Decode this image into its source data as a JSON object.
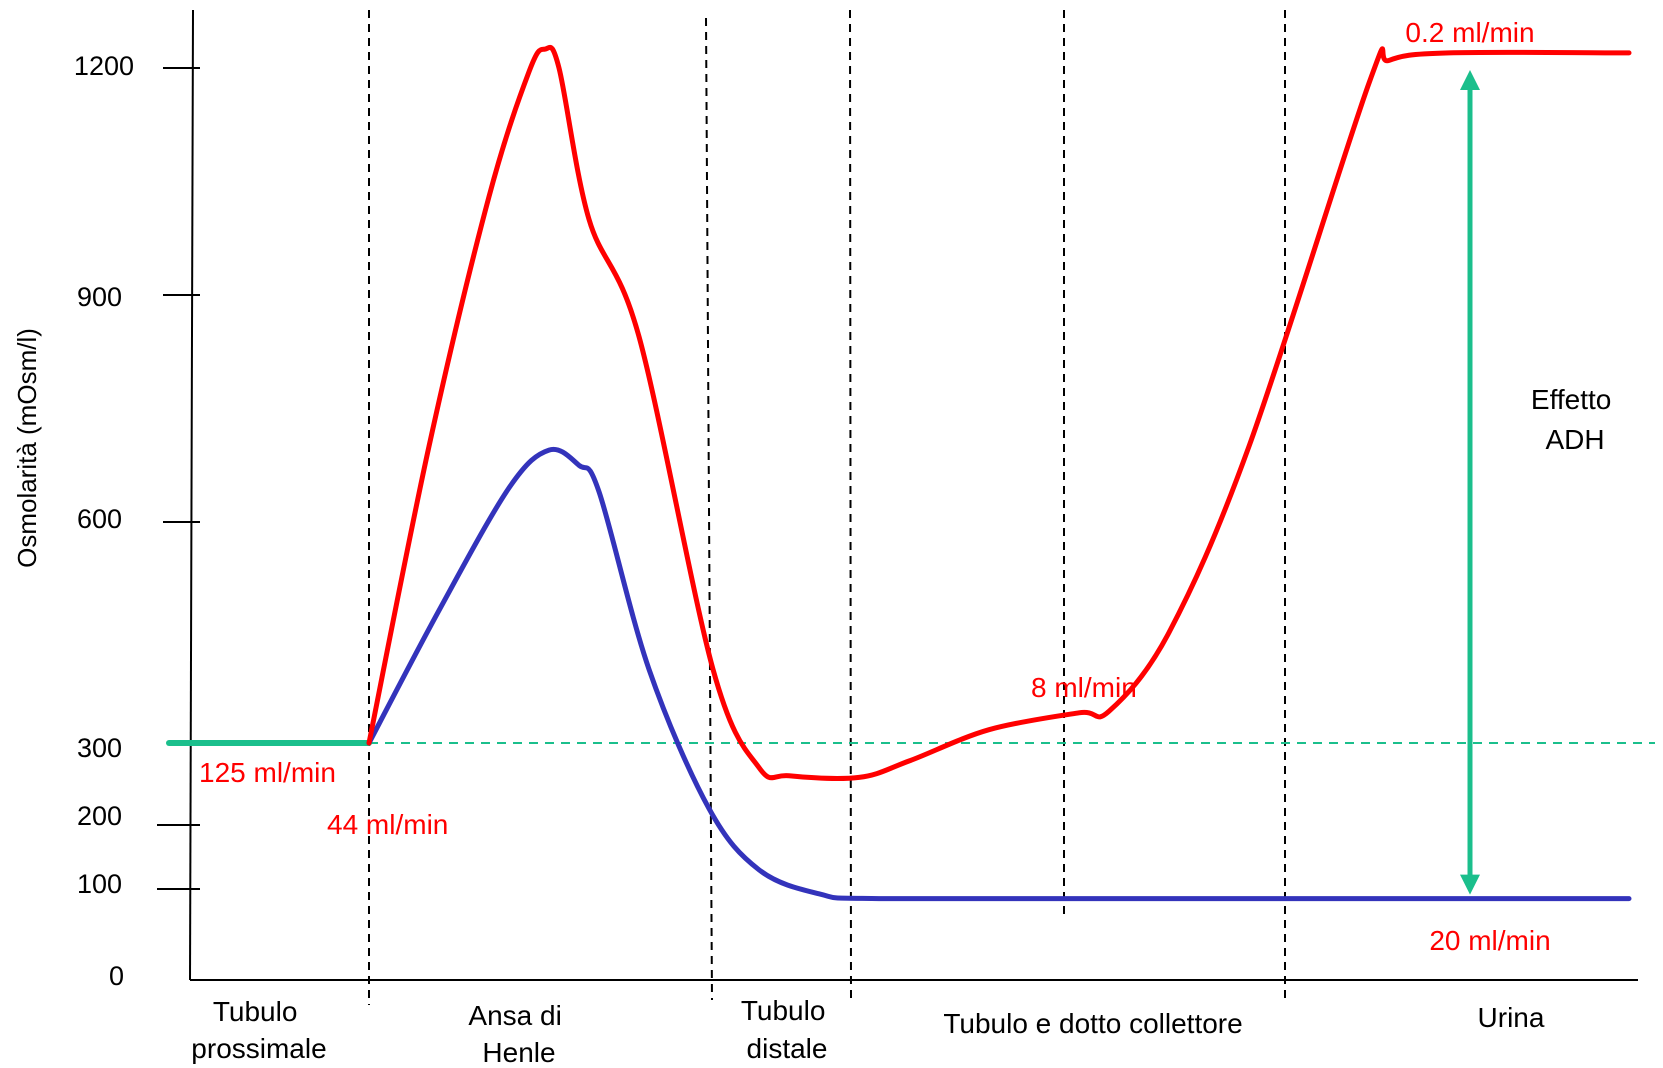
{
  "chart_data": {
    "type": "line",
    "ylabel": "Osmolarità (mOsm/l)",
    "y_ticks": [
      "1200",
      "900",
      "600",
      "300",
      "200",
      "100",
      "0"
    ],
    "y_tick_values": [
      1200,
      900,
      600,
      300,
      200,
      100,
      0
    ],
    "segments": [
      {
        "lines": [
          "Tubulo",
          "prossimale"
        ]
      },
      {
        "lines": [
          "Ansa di",
          "Henle"
        ]
      },
      {
        "lines": [
          "Tubulo",
          "distale"
        ]
      },
      {
        "lines": [
          "Tubulo e dotto collettore"
        ]
      },
      {
        "lines": [
          "Urina"
        ]
      }
    ],
    "flow_labels": [
      "0.2 ml/min",
      "125 ml/min",
      "44 ml/min",
      "8 ml/min",
      "20 ml/min"
    ],
    "annotation": {
      "lines": [
        "Effetto",
        "ADH"
      ]
    },
    "reference_line": {
      "y": 300,
      "style": "dashed",
      "color": "#1bbf8c"
    },
    "series": [
      {
        "color": "#ff0000",
        "points": [
          [
            0.0,
            300
          ],
          [
            0.3,
            700
          ],
          [
            0.6,
            1030
          ],
          [
            0.8,
            1195
          ],
          [
            0.88,
            1225
          ],
          [
            0.95,
            1200
          ],
          [
            1.1,
            1000
          ],
          [
            1.35,
            845
          ],
          [
            1.72,
            400
          ],
          [
            1.95,
            270
          ],
          [
            2.1,
            260
          ],
          [
            2.45,
            258
          ],
          [
            2.7,
            278
          ],
          [
            3.1,
            318
          ],
          [
            3.55,
            341
          ],
          [
            3.7,
            343
          ],
          [
            4.0,
            450
          ],
          [
            4.4,
            700
          ],
          [
            5.0,
            1180
          ],
          [
            5.1,
            1210
          ],
          [
            5.4,
            1220
          ],
          [
            6.3,
            1220
          ]
        ]
      },
      {
        "color": "#3333bb",
        "points": [
          [
            0.0,
            300
          ],
          [
            0.35,
            480
          ],
          [
            0.7,
            645
          ],
          [
            0.9,
            695
          ],
          [
            1.05,
            675
          ],
          [
            1.15,
            640
          ],
          [
            1.4,
            400
          ],
          [
            1.7,
            220
          ],
          [
            1.95,
            130
          ],
          [
            2.25,
            95
          ],
          [
            2.55,
            90
          ],
          [
            4.0,
            90
          ],
          [
            6.3,
            90
          ]
        ]
      },
      {
        "color": "#1bbf8c",
        "points": [
          [
            -1.0,
            300
          ],
          [
            0.0,
            300
          ]
        ]
      }
    ],
    "adh_arrow": {
      "from": 90,
      "to": 1200,
      "color": "#1bbf8c"
    },
    "grid": false
  }
}
